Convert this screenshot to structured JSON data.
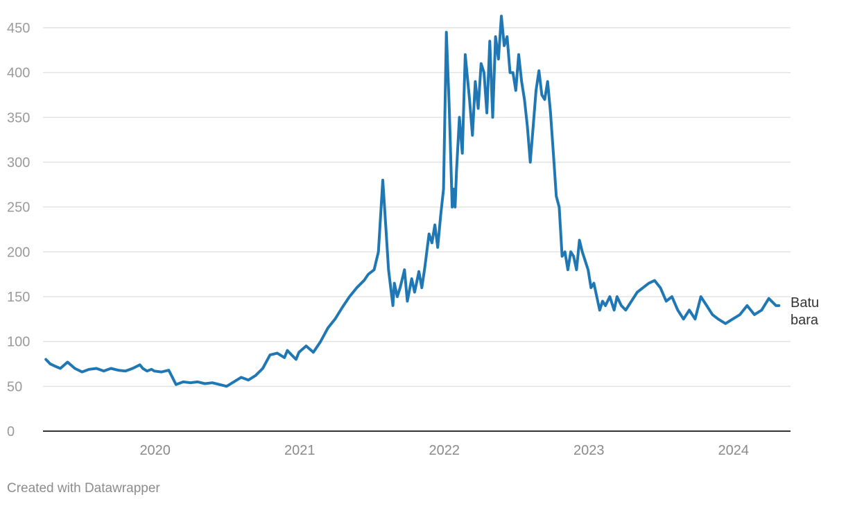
{
  "colors": {
    "line": "#1f77b4",
    "grid": "#e3e3e3",
    "axis": "#333333"
  },
  "footer": {
    "credit": "Created with Datawrapper"
  },
  "chart_data": {
    "type": "line",
    "title": "",
    "xlabel": "",
    "ylabel": "",
    "ylim": [
      0,
      450
    ],
    "xlim": [
      2019.33,
      2024.5
    ],
    "yticks": [
      0,
      50,
      100,
      150,
      200,
      250,
      300,
      350,
      400,
      450
    ],
    "xticks": [
      {
        "value": 2020.0,
        "label": "2020"
      },
      {
        "value": 2021.0,
        "label": "2021"
      },
      {
        "value": 2022.0,
        "label": "2022"
      },
      {
        "value": 2023.0,
        "label": "2023"
      },
      {
        "value": 2024.0,
        "label": "2024"
      }
    ],
    "grid": true,
    "series": [
      {
        "label_lines": [
          "Batu",
          "bara"
        ],
        "x": [
          2019.35,
          2019.38,
          2019.42,
          2019.45,
          2019.5,
          2019.55,
          2019.6,
          2019.65,
          2019.7,
          2019.75,
          2019.8,
          2019.85,
          2019.9,
          2019.95,
          2020.0,
          2020.02,
          2020.05,
          2020.08,
          2020.1,
          2020.15,
          2020.2,
          2020.25,
          2020.3,
          2020.35,
          2020.4,
          2020.45,
          2020.5,
          2020.55,
          2020.6,
          2020.65,
          2020.7,
          2020.75,
          2020.8,
          2020.85,
          2020.9,
          2020.95,
          2021.0,
          2021.02,
          2021.05,
          2021.08,
          2021.1,
          2021.15,
          2021.2,
          2021.25,
          2021.3,
          2021.35,
          2021.4,
          2021.45,
          2021.5,
          2021.55,
          2021.58,
          2021.62,
          2021.65,
          2021.68,
          2021.7,
          2021.72,
          2021.75,
          2021.76,
          2021.78,
          2021.8,
          2021.83,
          2021.85,
          2021.88,
          2021.9,
          2021.93,
          2021.95,
          2021.97,
          2022.0,
          2022.02,
          2022.04,
          2022.06,
          2022.08,
          2022.1,
          2022.12,
          2022.14,
          2022.16,
          2022.17,
          2022.18,
          2022.19,
          2022.2,
          2022.21,
          2022.23,
          2022.25,
          2022.28,
          2022.3,
          2022.32,
          2022.34,
          2022.36,
          2022.38,
          2022.4,
          2022.42,
          2022.44,
          2022.46,
          2022.48,
          2022.5,
          2022.52,
          2022.54,
          2022.56,
          2022.58,
          2022.6,
          2022.62,
          2022.64,
          2022.66,
          2022.68,
          2022.7,
          2022.72,
          2022.74,
          2022.76,
          2022.78,
          2022.8,
          2022.82,
          2022.84,
          2022.86,
          2022.88,
          2022.9,
          2022.92,
          2022.94,
          2022.96,
          2022.98,
          2023.0,
          2023.02,
          2023.04,
          2023.06,
          2023.08,
          2023.1,
          2023.12,
          2023.14,
          2023.16,
          2023.18,
          2023.2,
          2023.22,
          2023.25,
          2023.28,
          2023.3,
          2023.33,
          2023.36,
          2023.4,
          2023.44,
          2023.48,
          2023.52,
          2023.56,
          2023.6,
          2023.64,
          2023.68,
          2023.72,
          2023.76,
          2023.8,
          2023.84,
          2023.88,
          2023.92,
          2023.96,
          2024.0,
          2024.05,
          2024.1,
          2024.15,
          2024.2,
          2024.25,
          2024.3,
          2024.35,
          2024.4,
          2024.42
        ],
        "y": [
          80,
          75,
          72,
          70,
          77,
          70,
          66,
          69,
          70,
          67,
          70,
          68,
          67,
          70,
          74,
          70,
          67,
          69,
          67,
          66,
          68,
          52,
          55,
          54,
          55,
          53,
          54,
          52,
          50,
          55,
          60,
          57,
          62,
          70,
          85,
          87,
          82,
          90,
          85,
          80,
          88,
          95,
          88,
          100,
          115,
          125,
          138,
          150,
          160,
          168,
          175,
          180,
          200,
          280,
          230,
          180,
          140,
          165,
          150,
          160,
          180,
          145,
          170,
          155,
          178,
          160,
          182,
          220,
          210,
          230,
          205,
          240,
          270,
          445,
          360,
          250,
          270,
          250,
          290,
          320,
          350,
          310,
          420,
          370,
          330,
          390,
          360,
          410,
          400,
          355,
          435,
          350,
          440,
          415,
          463,
          430,
          440,
          400,
          400,
          380,
          420,
          390,
          370,
          340,
          300,
          340,
          380,
          402,
          375,
          370,
          390,
          355,
          310,
          262,
          250,
          195,
          200,
          180,
          200,
          195,
          180,
          213,
          200,
          190,
          180,
          160,
          165,
          150,
          135,
          145,
          140,
          150,
          135,
          150,
          140,
          135,
          145,
          155,
          160,
          165,
          168,
          160,
          145,
          150,
          135,
          125,
          135,
          125,
          150,
          140,
          130,
          125,
          120,
          125,
          130,
          140,
          130,
          135,
          148,
          140,
          140
        ]
      }
    ]
  }
}
